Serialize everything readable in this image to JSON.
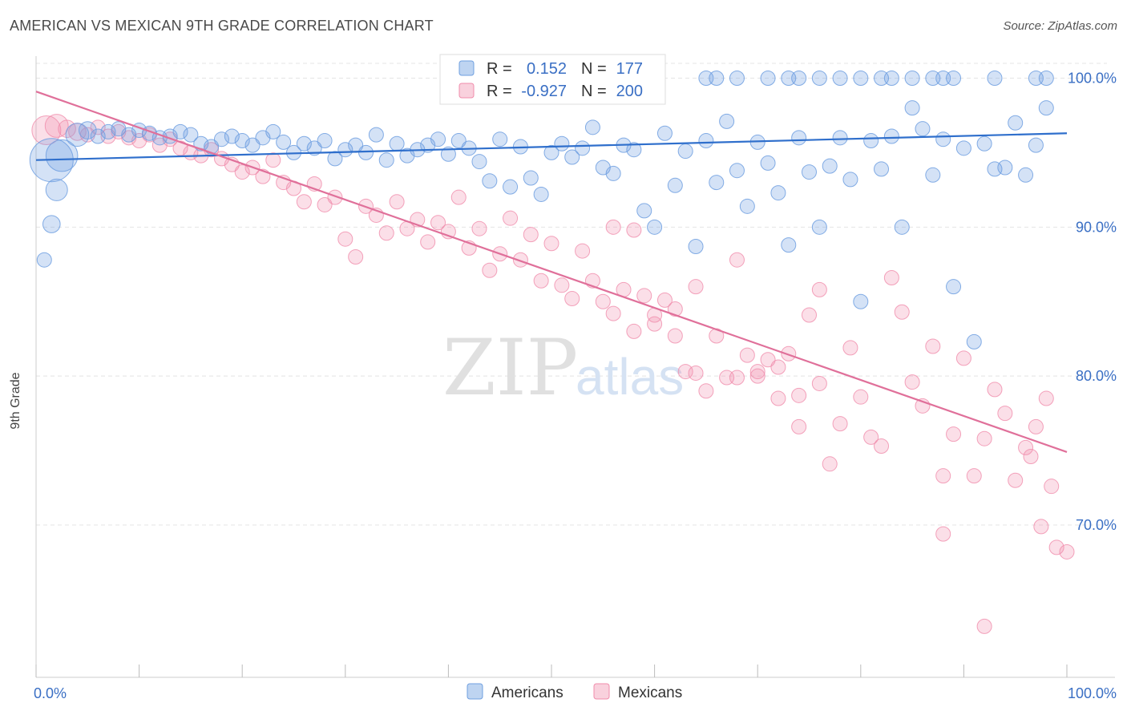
{
  "title": "AMERICAN VS MEXICAN 9TH GRADE CORRELATION CHART",
  "source": "Source: ZipAtlas.com",
  "watermark": {
    "zip": "ZIP",
    "atlas": "atlas"
  },
  "colors": {
    "americans": "#6f9fe0",
    "mexicans": "#f08cab",
    "american_line": "#2f6fcc",
    "mexican_line": "#e0709a",
    "tick": "#3a6fc4"
  },
  "stats": {
    "americans": {
      "r_label": "R =",
      "r_value": "0.152",
      "n_label": "N =",
      "n_value": "177"
    },
    "mexicans": {
      "r_label": "R =",
      "r_value": "-0.927",
      "n_label": "N =",
      "n_value": "200"
    }
  },
  "legend": {
    "americans": "Americans",
    "mexicans": "Mexicans"
  },
  "chart_data": {
    "type": "scatter",
    "title": "AMERICAN VS MEXICAN 9TH GRADE CORRELATION CHART",
    "xlabel": "",
    "ylabel": "9th Grade",
    "xlim": [
      0,
      100
    ],
    "ylim": [
      61,
      102
    ],
    "x_tick_labels": [
      "0.0%",
      "100.0%"
    ],
    "y_ticks": [
      70,
      80,
      90,
      100
    ],
    "y_tick_labels": [
      "70.0%",
      "80.0%",
      "90.0%",
      "100.0%"
    ],
    "grid": true,
    "legend_position": "bottom-center",
    "series": [
      {
        "name": "Americans",
        "r": 0.152,
        "n": 177,
        "trend": [
          [
            0,
            94.5
          ],
          [
            100,
            96.3
          ]
        ],
        "points": [
          [
            1.5,
            94.5,
            3
          ],
          [
            2.5,
            94.8,
            2.2
          ],
          [
            2,
            92.5,
            1.5
          ],
          [
            1.5,
            90.2,
            1.2
          ],
          [
            0.8,
            87.8,
            1
          ],
          [
            4,
            96.2,
            1.6
          ],
          [
            5,
            96.5,
            1.2
          ],
          [
            6,
            96.1,
            1
          ],
          [
            7,
            96.4,
            1
          ],
          [
            8,
            96.6,
            1
          ],
          [
            9,
            96.2,
            1
          ],
          [
            10,
            96.5,
            1
          ],
          [
            11,
            96.3,
            1
          ],
          [
            12,
            96,
            1
          ],
          [
            13,
            96.1,
            1
          ],
          [
            14,
            96.4,
            1
          ],
          [
            15,
            96.2,
            1
          ],
          [
            16,
            95.6,
            1
          ],
          [
            17,
            95.4,
            1
          ],
          [
            18,
            95.9,
            1
          ],
          [
            19,
            96.1,
            1
          ],
          [
            20,
            95.8,
            1
          ],
          [
            21,
            95.5,
            1
          ],
          [
            22,
            96.0,
            1
          ],
          [
            23,
            96.4,
            1
          ],
          [
            24,
            95.7,
            1
          ],
          [
            25,
            95.0,
            1
          ],
          [
            26,
            95.6,
            1
          ],
          [
            27,
            95.3,
            1
          ],
          [
            28,
            95.8,
            1
          ],
          [
            29,
            94.6,
            1
          ],
          [
            30,
            95.2,
            1
          ],
          [
            31,
            95.5,
            1
          ],
          [
            32,
            95.0,
            1
          ],
          [
            33,
            96.2,
            1
          ],
          [
            34,
            94.5,
            1
          ],
          [
            35,
            95.6,
            1
          ],
          [
            36,
            94.8,
            1
          ],
          [
            37,
            95.2,
            1
          ],
          [
            38,
            95.5,
            1
          ],
          [
            39,
            95.9,
            1
          ],
          [
            40,
            94.9,
            1
          ],
          [
            41,
            95.8,
            1
          ],
          [
            42,
            95.3,
            1
          ],
          [
            43,
            94.4,
            1
          ],
          [
            44,
            93.1,
            1
          ],
          [
            45,
            95.9,
            1
          ],
          [
            46,
            92.7,
            1
          ],
          [
            47,
            95.4,
            1
          ],
          [
            48,
            93.3,
            1
          ],
          [
            49,
            92.2,
            1
          ],
          [
            50,
            95.0,
            1
          ],
          [
            51,
            95.6,
            1
          ],
          [
            52,
            94.7,
            1
          ],
          [
            53,
            95.3,
            1
          ],
          [
            54,
            96.7,
            1
          ],
          [
            55,
            94.0,
            1
          ],
          [
            56,
            93.6,
            1
          ],
          [
            57,
            95.5,
            1
          ],
          [
            58,
            95.2,
            1
          ],
          [
            59,
            91.1,
            1
          ],
          [
            60,
            90.0,
            1
          ],
          [
            61,
            96.3,
            1
          ],
          [
            62,
            92.8,
            1
          ],
          [
            63,
            95.1,
            1
          ],
          [
            64,
            88.7,
            1
          ],
          [
            65,
            95.8,
            1
          ],
          [
            66,
            93.0,
            1
          ],
          [
            67,
            97.1,
            1
          ],
          [
            68,
            93.8,
            1
          ],
          [
            69,
            91.4,
            1
          ],
          [
            70,
            95.7,
            1
          ],
          [
            71,
            94.3,
            1
          ],
          [
            72,
            92.3,
            1
          ],
          [
            73,
            88.8,
            1
          ],
          [
            74,
            96.0,
            1
          ],
          [
            75,
            93.7,
            1
          ],
          [
            76,
            90.0,
            1
          ],
          [
            77,
            94.1,
            1
          ],
          [
            78,
            96.0,
            1
          ],
          [
            79,
            93.2,
            1
          ],
          [
            80,
            85.0,
            1
          ],
          [
            81,
            95.8,
            1
          ],
          [
            82,
            93.9,
            1
          ],
          [
            83,
            96.1,
            1
          ],
          [
            84,
            90.0,
            1
          ],
          [
            85,
            98.0,
            1
          ],
          [
            86,
            96.6,
            1
          ],
          [
            87,
            93.5,
            1
          ],
          [
            88,
            95.9,
            1
          ],
          [
            89,
            86.0,
            1
          ],
          [
            90,
            95.3,
            1
          ],
          [
            91,
            82.3,
            1
          ],
          [
            92,
            95.6,
            1
          ],
          [
            93,
            93.9,
            1
          ],
          [
            94,
            94.0,
            1
          ],
          [
            95,
            97.0,
            1
          ],
          [
            96,
            93.5,
            1
          ],
          [
            97,
            95.5,
            1
          ],
          [
            98,
            98.0,
            1
          ],
          [
            65,
            100,
            1
          ],
          [
            66,
            100,
            1
          ],
          [
            68,
            100,
            1
          ],
          [
            71,
            100,
            1
          ],
          [
            73,
            100,
            1
          ],
          [
            74,
            100,
            1
          ],
          [
            76,
            100,
            1
          ],
          [
            78,
            100,
            1
          ],
          [
            80,
            100,
            1
          ],
          [
            82,
            100,
            1
          ],
          [
            83,
            100,
            1
          ],
          [
            85,
            100,
            1
          ],
          [
            87,
            100,
            1
          ],
          [
            88,
            100,
            1
          ],
          [
            89,
            100,
            1
          ],
          [
            93,
            100,
            1
          ],
          [
            97,
            100,
            1
          ],
          [
            98,
            100,
            1
          ],
          [
            59,
            100,
            1
          ],
          [
            60,
            100,
            1
          ]
        ]
      },
      {
        "name": "Mexicans",
        "r": -0.927,
        "n": 200,
        "trend": [
          [
            0,
            99.1
          ],
          [
            100,
            74.9
          ]
        ],
        "points": [
          [
            1,
            96.5,
            2
          ],
          [
            2,
            96.8,
            1.6
          ],
          [
            3,
            96.6,
            1.2
          ],
          [
            4,
            96.4,
            1.2
          ],
          [
            5,
            96.2,
            1
          ],
          [
            6,
            96.7,
            1
          ],
          [
            7,
            96.1,
            1
          ],
          [
            8,
            96.4,
            1
          ],
          [
            9,
            96.0,
            1
          ],
          [
            10,
            95.8,
            1
          ],
          [
            11,
            96.2,
            1
          ],
          [
            12,
            95.5,
            1
          ],
          [
            13,
            95.9,
            1
          ],
          [
            14,
            95.3,
            1
          ],
          [
            15,
            95.0,
            1
          ],
          [
            16,
            94.8,
            1
          ],
          [
            17,
            95.2,
            1
          ],
          [
            18,
            94.6,
            1
          ],
          [
            19,
            94.2,
            1
          ],
          [
            20,
            93.7,
            1
          ],
          [
            21,
            94.0,
            1
          ],
          [
            22,
            93.4,
            1
          ],
          [
            23,
            94.5,
            1
          ],
          [
            24,
            93.0,
            1
          ],
          [
            25,
            92.6,
            1
          ],
          [
            26,
            91.7,
            1
          ],
          [
            27,
            92.9,
            1
          ],
          [
            28,
            91.5,
            1
          ],
          [
            29,
            92.0,
            1
          ],
          [
            30,
            89.2,
            1
          ],
          [
            31,
            88.0,
            1
          ],
          [
            32,
            91.4,
            1
          ],
          [
            33,
            90.8,
            1
          ],
          [
            34,
            89.6,
            1
          ],
          [
            35,
            91.7,
            1
          ],
          [
            36,
            89.9,
            1
          ],
          [
            37,
            90.5,
            1
          ],
          [
            38,
            89.0,
            1
          ],
          [
            39,
            90.3,
            1
          ],
          [
            40,
            89.7,
            1
          ],
          [
            41,
            92.0,
            1
          ],
          [
            42,
            88.6,
            1
          ],
          [
            43,
            89.9,
            1
          ],
          [
            44,
            87.1,
            1
          ],
          [
            45,
            88.2,
            1
          ],
          [
            46,
            90.6,
            1
          ],
          [
            47,
            87.8,
            1
          ],
          [
            48,
            89.5,
            1
          ],
          [
            49,
            86.4,
            1
          ],
          [
            50,
            88.9,
            1
          ],
          [
            51,
            86.1,
            1
          ],
          [
            52,
            85.2,
            1
          ],
          [
            53,
            88.4,
            1
          ],
          [
            54,
            86.4,
            1
          ],
          [
            55,
            85.0,
            1
          ],
          [
            56,
            84.2,
            1
          ],
          [
            57,
            85.8,
            1
          ],
          [
            58,
            83.0,
            1
          ],
          [
            59,
            85.4,
            1
          ],
          [
            60,
            84.1,
            1
          ],
          [
            61,
            85.1,
            1
          ],
          [
            62,
            82.7,
            1
          ],
          [
            63,
            80.3,
            1
          ],
          [
            64,
            86.0,
            1
          ],
          [
            65,
            79.0,
            1
          ],
          [
            66,
            82.7,
            1
          ],
          [
            67,
            79.9,
            1
          ],
          [
            68,
            87.8,
            1
          ],
          [
            69,
            81.4,
            1
          ],
          [
            70,
            80.3,
            1
          ],
          [
            71,
            81.1,
            1
          ],
          [
            72,
            78.5,
            1
          ],
          [
            73,
            81.5,
            1
          ],
          [
            74,
            76.6,
            1
          ],
          [
            75,
            84.1,
            1
          ],
          [
            76,
            85.8,
            1
          ],
          [
            77,
            74.1,
            1
          ],
          [
            78,
            76.8,
            1
          ],
          [
            79,
            81.9,
            1
          ],
          [
            80,
            78.6,
            1
          ],
          [
            81,
            75.9,
            1
          ],
          [
            82,
            75.3,
            1
          ],
          [
            83,
            86.6,
            1
          ],
          [
            84,
            84.3,
            1
          ],
          [
            85,
            79.6,
            1
          ],
          [
            86,
            78.0,
            1
          ],
          [
            87,
            82.0,
            1
          ],
          [
            88,
            73.3,
            1
          ],
          [
            89,
            76.1,
            1
          ],
          [
            90,
            81.2,
            1
          ],
          [
            91,
            73.3,
            1
          ],
          [
            92,
            75.8,
            1
          ],
          [
            93,
            79.1,
            1
          ],
          [
            94,
            77.5,
            1
          ],
          [
            95,
            73.0,
            1
          ],
          [
            96,
            75.2,
            1
          ],
          [
            97,
            76.6,
            1
          ],
          [
            98,
            78.5,
            1
          ],
          [
            99,
            68.5,
            1
          ],
          [
            100,
            68.2,
            1
          ],
          [
            92,
            63.2,
            1
          ],
          [
            88,
            69.4,
            1
          ],
          [
            97.5,
            69.9,
            1
          ],
          [
            96.5,
            74.6,
            1
          ],
          [
            98.5,
            72.6,
            1
          ],
          [
            70,
            80.0,
            1
          ],
          [
            72,
            80.6,
            1
          ],
          [
            68,
            79.9,
            1
          ],
          [
            74,
            78.7,
            1
          ],
          [
            76,
            79.5,
            1
          ],
          [
            64,
            80.2,
            1
          ],
          [
            60,
            83.5,
            1
          ],
          [
            62,
            84.5,
            1
          ],
          [
            58,
            89.8,
            1
          ],
          [
            56,
            90.0,
            1
          ]
        ]
      }
    ]
  }
}
